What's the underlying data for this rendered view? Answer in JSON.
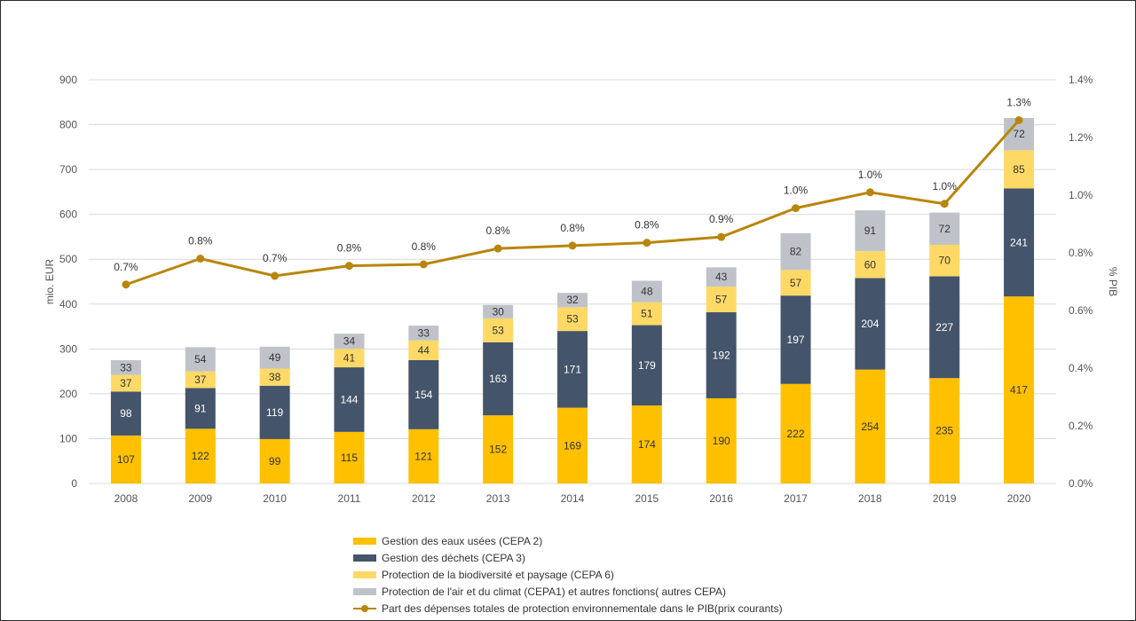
{
  "chart_data": {
    "type": "bar",
    "stacked": true,
    "categories": [
      "2008",
      "2009",
      "2010",
      "2011",
      "2012",
      "2013",
      "2014",
      "2015",
      "2016",
      "2017",
      "2018",
      "2019",
      "2020"
    ],
    "series": [
      {
        "name": "Gestion des eaux usées (CEPA 2)",
        "color": "#FFC000",
        "label_color": "#333333",
        "values": [
          107,
          122,
          99,
          115,
          121,
          152,
          169,
          174,
          190,
          222,
          254,
          235,
          417
        ]
      },
      {
        "name": "Gestion des déchets (CEPA 3)",
        "color": "#44546A",
        "label_color": "#FFFFFF",
        "values": [
          98,
          91,
          119,
          144,
          154,
          163,
          171,
          179,
          192,
          197,
          204,
          227,
          241
        ]
      },
      {
        "name": "Protection de la biodiversité et paysage (CEPA 6)",
        "color": "#FFD966",
        "label_color": "#333333",
        "values": [
          37,
          37,
          38,
          41,
          44,
          53,
          53,
          51,
          57,
          57,
          60,
          70,
          85
        ]
      },
      {
        "name": "Protection de l'air et du climat (CEPA1) et autres fonctions( autres CEPA)",
        "color": "#BFC3C9",
        "label_color": "#333333",
        "values": [
          33,
          54,
          49,
          34,
          33,
          30,
          32,
          48,
          43,
          82,
          91,
          72,
          72
        ]
      }
    ],
    "line_series": {
      "name": "Part des dépenses totales de protection environnementale dans le PIB(prix courants)",
      "color": "#B8860B",
      "axis": "right",
      "values": [
        0.69,
        0.78,
        0.72,
        0.755,
        0.76,
        0.815,
        0.825,
        0.835,
        0.855,
        0.955,
        1.01,
        0.97,
        1.26
      ],
      "labels": [
        "0.7%",
        "0.8%",
        "0.7%",
        "0.8%",
        "0.8%",
        "0.8%",
        "0.8%",
        "0.8%",
        "0.9%",
        "1.0%",
        "1.0%",
        "1.0%",
        "1.3%"
      ]
    },
    "ylabel": "mio. EUR",
    "y2label": "% PIB",
    "ylim": [
      0,
      900
    ],
    "yticks": [
      0,
      100,
      200,
      300,
      400,
      500,
      600,
      700,
      800,
      900
    ],
    "y2lim": [
      0,
      1.4
    ],
    "y2ticks": [
      "0.0%",
      "0.2%",
      "0.4%",
      "0.6%",
      "0.8%",
      "1.0%",
      "1.2%",
      "1.4%"
    ],
    "grid": true,
    "legend_position": "bottom"
  }
}
